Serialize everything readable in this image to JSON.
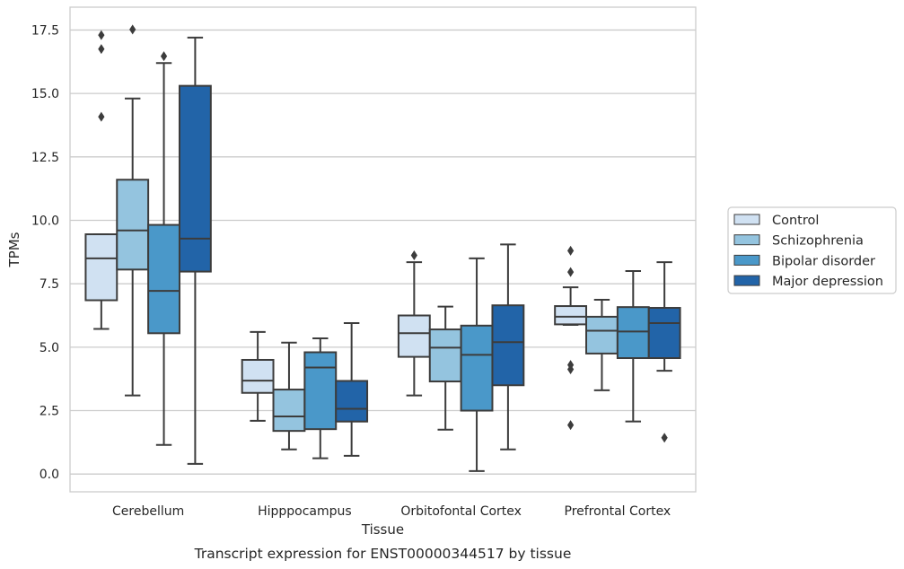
{
  "caption": "Transcript expression for ENST00000344517 by tissue",
  "chart_data": {
    "type": "box",
    "title": "",
    "xlabel": "Tissue",
    "ylabel": "TPMs",
    "ylim": [
      -0.7,
      18.4
    ],
    "yticks": [
      0.0,
      2.5,
      5.0,
      7.5,
      10.0,
      12.5,
      15.0,
      17.5
    ],
    "ytick_labels": [
      "0.0",
      "2.5",
      "5.0",
      "7.5",
      "10.0",
      "12.5",
      "15.0",
      "17.5"
    ],
    "grid": "horizontal",
    "legend_position": "right",
    "categories": [
      "Cerebellum",
      "Hipppocampus",
      "Orbitofontal Cortex",
      "Prefrontal Cortex"
    ],
    "series": [
      {
        "name": "Control",
        "color": "#d0e1f2",
        "boxes": [
          {
            "whisker_low": 5.72,
            "q1": 6.85,
            "median": 8.5,
            "q3": 9.45,
            "whisker_high": 9.45,
            "outliers": [
              14.08,
              16.75,
              17.3
            ]
          },
          {
            "whisker_low": 2.1,
            "q1": 3.2,
            "median": 3.68,
            "q3": 4.5,
            "whisker_high": 5.6,
            "outliers": []
          },
          {
            "whisker_low": 3.1,
            "q1": 4.62,
            "median": 5.55,
            "q3": 6.25,
            "whisker_high": 8.35,
            "outliers": [
              8.62
            ]
          },
          {
            "whisker_low": 5.88,
            "q1": 5.9,
            "median": 6.2,
            "q3": 6.62,
            "whisker_high": 7.36,
            "outliers": [
              1.93,
              4.13,
              4.3,
              7.96,
              8.8
            ]
          }
        ]
      },
      {
        "name": "Schizophrenia",
        "color": "#94c4df",
        "boxes": [
          {
            "whisker_low": 3.1,
            "q1": 8.06,
            "median": 9.6,
            "q3": 11.6,
            "whisker_high": 14.8,
            "outliers": [
              17.52
            ]
          },
          {
            "whisker_low": 0.97,
            "q1": 1.7,
            "median": 2.27,
            "q3": 3.33,
            "whisker_high": 5.18,
            "outliers": []
          },
          {
            "whisker_low": 1.75,
            "q1": 3.65,
            "median": 4.98,
            "q3": 5.7,
            "whisker_high": 6.6,
            "outliers": []
          },
          {
            "whisker_low": 3.3,
            "q1": 4.75,
            "median": 5.65,
            "q3": 6.2,
            "whisker_high": 6.87,
            "outliers": []
          }
        ]
      },
      {
        "name": "Bipolar disorder",
        "color": "#4a98c9",
        "boxes": [
          {
            "whisker_low": 1.15,
            "q1": 5.55,
            "median": 7.22,
            "q3": 9.82,
            "whisker_high": 16.2,
            "outliers": [
              16.47
            ]
          },
          {
            "whisker_low": 0.62,
            "q1": 1.77,
            "median": 4.2,
            "q3": 4.8,
            "whisker_high": 5.35,
            "outliers": []
          },
          {
            "whisker_low": 0.12,
            "q1": 2.5,
            "median": 4.7,
            "q3": 5.85,
            "whisker_high": 8.5,
            "outliers": []
          },
          {
            "whisker_low": 2.07,
            "q1": 4.57,
            "median": 5.62,
            "q3": 6.58,
            "whisker_high": 8.0,
            "outliers": []
          }
        ]
      },
      {
        "name": "Major depression",
        "color": "#2264a8",
        "boxes": [
          {
            "whisker_low": 0.4,
            "q1": 7.98,
            "median": 9.28,
            "q3": 15.3,
            "whisker_high": 17.2,
            "outliers": []
          },
          {
            "whisker_low": 0.72,
            "q1": 2.07,
            "median": 2.57,
            "q3": 3.67,
            "whisker_high": 5.95,
            "outliers": []
          },
          {
            "whisker_low": 0.97,
            "q1": 3.5,
            "median": 5.2,
            "q3": 6.65,
            "whisker_high": 9.05,
            "outliers": []
          },
          {
            "whisker_low": 4.07,
            "q1": 4.57,
            "median": 5.95,
            "q3": 6.55,
            "whisker_high": 8.35,
            "outliers": [
              1.43
            ]
          }
        ]
      }
    ]
  }
}
